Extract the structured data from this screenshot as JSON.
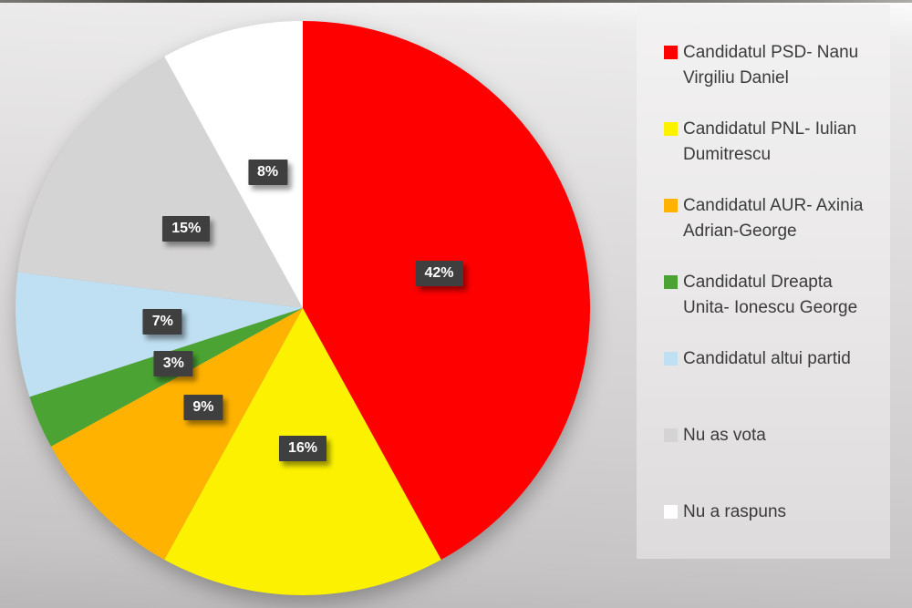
{
  "chart_data": {
    "type": "pie",
    "title": "",
    "legend_position": "right",
    "direction": "clockwise",
    "start_angle_deg": 0,
    "data_label_style": {
      "background": "#3f3f3f",
      "text": "#ffffff"
    },
    "slices": [
      {
        "label": "Candidatul PSD- Nanu Virgiliu Daniel",
        "value": 42,
        "display": "42%",
        "color": "#fe0000"
      },
      {
        "label": "Candidatul PNL- Iulian Dumitrescu",
        "value": 16,
        "display": "16%",
        "color": "#fcf200"
      },
      {
        "label": "Candidatul AUR- Axinia Adrian-George",
        "value": 9,
        "display": "9%",
        "color": "#ffb300"
      },
      {
        "label": "Candidatul Dreapta Unita- Ionescu George",
        "value": 3,
        "display": "3%",
        "color": "#4aa333"
      },
      {
        "label": "Candidatul altui partid",
        "value": 7,
        "display": "7%",
        "color": "#bfdff2"
      },
      {
        "label": "Nu as vota",
        "value": 15,
        "display": "15%",
        "color": "#d5d4d4"
      },
      {
        "label": "Nu a raspuns",
        "value": 8,
        "display": "8%",
        "color": "#ffffff"
      }
    ]
  }
}
